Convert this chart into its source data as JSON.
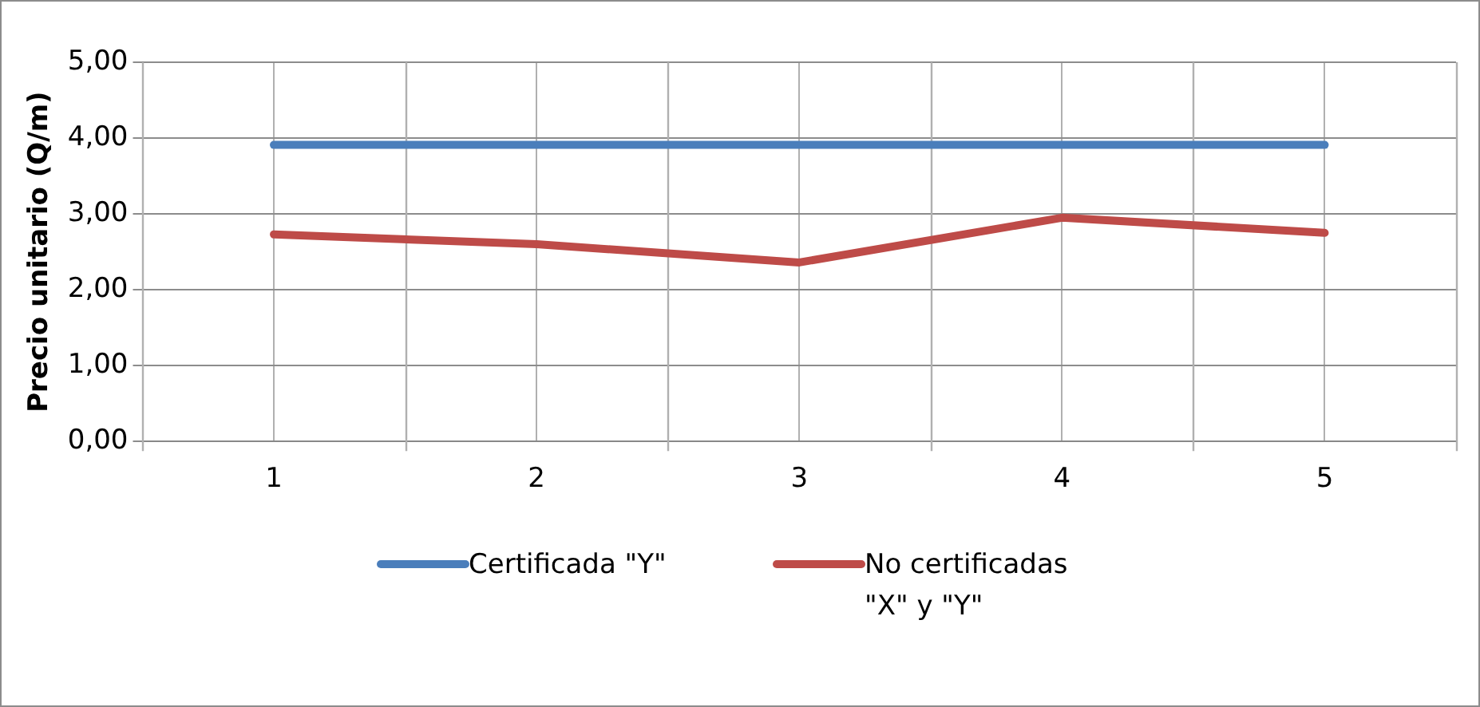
{
  "chart_data": {
    "type": "line",
    "ylabel": "Precio unitario (Q/m)",
    "categories": [
      "1",
      "2",
      "3",
      "4",
      "5"
    ],
    "series": [
      {
        "name": "Certificada \"Y\"",
        "color": "#4a7ebb",
        "values": [
          3.91,
          3.91,
          3.91,
          3.91,
          3.91
        ]
      },
      {
        "name": "No certificadas \"X\" y \"Y\"",
        "color": "#be4b48",
        "values": [
          2.73,
          2.6,
          2.36,
          2.95,
          2.75
        ]
      }
    ],
    "ylim": [
      0,
      5
    ],
    "yticks": [
      {
        "value": 0,
        "label": "0,00"
      },
      {
        "value": 1,
        "label": "1,00"
      },
      {
        "value": 2,
        "label": "2,00"
      },
      {
        "value": 3,
        "label": "3,00"
      },
      {
        "value": 4,
        "label": "4,00"
      },
      {
        "value": 5,
        "label": "5,00"
      }
    ],
    "grid": true,
    "legend": "bottom",
    "marker": "none",
    "line_style": "solid"
  }
}
